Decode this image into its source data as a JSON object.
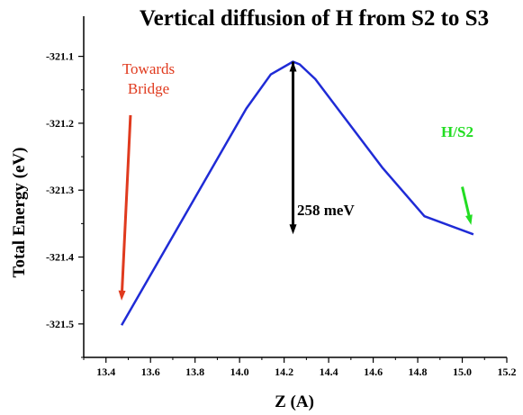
{
  "chart_data": {
    "type": "line",
    "title": "Vertical diffusion of H from S2 to S3",
    "xlabel": "Z (A)",
    "ylabel": "Total Energy (eV)",
    "xlim": [
      13.3,
      15.2
    ],
    "ylim": [
      -321.55,
      -321.04
    ],
    "x_ticks": [
      "13.4",
      "13.6",
      "13.8",
      "14.0",
      "14.2",
      "14.4",
      "14.6",
      "14.8",
      "15.0",
      "15.2"
    ],
    "y_ticks": [
      "-321.1",
      "-321.2",
      "-321.3",
      "-321.4",
      "-321.5"
    ],
    "grid": false,
    "legend": "none",
    "series": [
      {
        "color": "#1f2bd6",
        "x": [
          13.47,
          14.03,
          14.14,
          14.24,
          14.27,
          14.34,
          14.64,
          14.83,
          15.05
        ],
        "y": [
          -321.502,
          -321.178,
          -321.127,
          -321.108,
          -321.112,
          -321.134,
          -321.266,
          -321.339,
          -321.366
        ]
      }
    ],
    "annotations": [
      {
        "text_lines": [
          "Towards",
          "Bridge"
        ],
        "color": "#e03a1e",
        "arrow_from": [
          13.51,
          -321.188
        ],
        "arrow_to": [
          13.47,
          -321.465
        ]
      },
      {
        "text_lines": [
          "H/S2"
        ],
        "color": "#22dd22",
        "arrow_from": [
          15.0,
          -321.295
        ],
        "arrow_to": [
          15.04,
          -321.352
        ]
      },
      {
        "text_lines": [
          "258 meV"
        ],
        "color": "#000000",
        "arrow_from": [
          14.24,
          -321.108
        ],
        "arrow_to": [
          14.24,
          -321.366
        ],
        "double_headed": true
      }
    ]
  }
}
